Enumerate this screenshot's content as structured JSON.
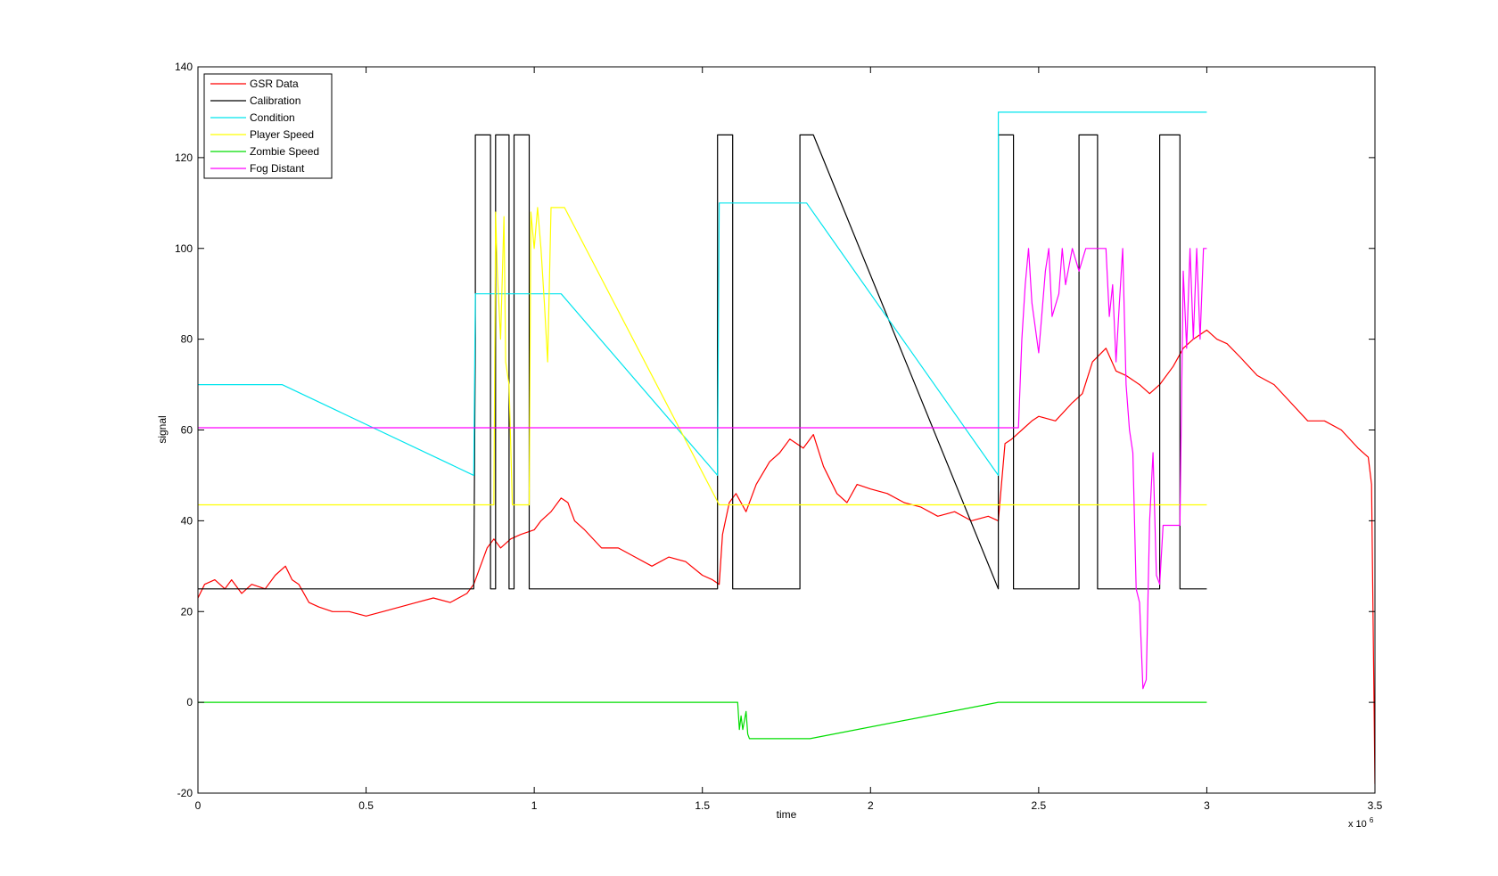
{
  "chart_data": {
    "type": "line",
    "xlabel": "time",
    "ylabel": "signal",
    "x_exponent_label": "x 10",
    "x_exponent_power": "6",
    "xlim": [
      0,
      3.5
    ],
    "ylim": [
      -20,
      140
    ],
    "x_ticks": [
      0,
      0.5,
      1,
      1.5,
      2,
      2.5,
      3,
      3.5
    ],
    "x_tick_labels": [
      "0",
      "0.5",
      "1",
      "1.5",
      "2",
      "2.5",
      "3",
      "3.5"
    ],
    "y_ticks": [
      -20,
      0,
      20,
      40,
      60,
      80,
      100,
      120,
      140
    ],
    "y_tick_labels": [
      "-20",
      "0",
      "20",
      "40",
      "60",
      "80",
      "100",
      "120",
      "140"
    ],
    "grid": false,
    "legend_position": "top-left",
    "series": [
      {
        "name": "GSR Data",
        "color": "#ff0000",
        "x": [
          0,
          0.02,
          0.05,
          0.08,
          0.1,
          0.13,
          0.16,
          0.2,
          0.23,
          0.26,
          0.28,
          0.3,
          0.33,
          0.36,
          0.4,
          0.45,
          0.5,
          0.55,
          0.6,
          0.65,
          0.7,
          0.75,
          0.8,
          0.82,
          0.84,
          0.86,
          0.88,
          0.9,
          0.93,
          0.96,
          1.0,
          1.02,
          1.05,
          1.08,
          1.1,
          1.12,
          1.15,
          1.2,
          1.25,
          1.3,
          1.35,
          1.4,
          1.45,
          1.5,
          1.53,
          1.55,
          1.56,
          1.58,
          1.6,
          1.63,
          1.66,
          1.7,
          1.73,
          1.76,
          1.8,
          1.83,
          1.86,
          1.9,
          1.93,
          1.96,
          2.0,
          2.05,
          2.1,
          2.15,
          2.2,
          2.25,
          2.3,
          2.35,
          2.38,
          2.4,
          2.42,
          2.45,
          2.48,
          2.5,
          2.55,
          2.6,
          2.63,
          2.66,
          2.7,
          2.73,
          2.76,
          2.8,
          2.83,
          2.86,
          2.9,
          2.93,
          2.96,
          3.0,
          3.03,
          3.06,
          3.1,
          3.15,
          3.2,
          3.25,
          3.3,
          3.35,
          3.4,
          3.45,
          3.48,
          3.49,
          3.5
        ],
        "y": [
          23,
          26,
          27,
          25,
          27,
          24,
          26,
          25,
          28,
          30,
          27,
          26,
          22,
          21,
          20,
          20,
          19,
          20,
          21,
          22,
          23,
          22,
          24,
          26,
          30,
          34,
          36,
          34,
          36,
          37,
          38,
          40,
          42,
          45,
          44,
          40,
          38,
          34,
          34,
          32,
          30,
          32,
          31,
          28,
          27,
          26,
          37,
          44,
          46,
          42,
          48,
          53,
          55,
          58,
          56,
          59,
          52,
          46,
          44,
          48,
          47,
          46,
          44,
          43,
          41,
          42,
          40,
          41,
          40,
          57,
          58,
          60,
          62,
          63,
          62,
          66,
          68,
          75,
          78,
          73,
          72,
          70,
          68,
          70,
          74,
          78,
          80,
          82,
          80,
          79,
          76,
          72,
          70,
          66,
          62,
          62,
          60,
          56,
          54,
          48,
          -18
        ]
      },
      {
        "name": "Calibration",
        "color": "#000000",
        "x": [
          0,
          0.82,
          0.825,
          0.825,
          0.87,
          0.87,
          0.885,
          0.885,
          0.925,
          0.925,
          0.94,
          0.94,
          0.985,
          0.985,
          1.545,
          1.545,
          1.59,
          1.59,
          1.605,
          1.605,
          1.79,
          1.79,
          1.83,
          2.38,
          2.38,
          2.425,
          2.425,
          2.44,
          2.44,
          2.62,
          2.62,
          2.675,
          2.675,
          2.86,
          2.86,
          2.92,
          2.92,
          3.0
        ],
        "y": [
          25,
          25,
          80,
          125,
          125,
          25,
          25,
          125,
          125,
          25,
          25,
          125,
          125,
          25,
          25,
          125,
          125,
          25,
          25,
          25,
          25,
          125,
          125,
          25,
          125,
          125,
          25,
          25,
          25,
          25,
          125,
          125,
          25,
          25,
          125,
          125,
          25,
          25
        ]
      },
      {
        "name": "Condition",
        "color": "#00e5ee",
        "x": [
          0,
          0.25,
          0.82,
          0.825,
          1.08,
          1.545,
          1.55,
          1.81,
          2.38,
          2.38,
          3.0
        ],
        "y": [
          70,
          70,
          50,
          90,
          90,
          50,
          110,
          110,
          50,
          130,
          130
        ]
      },
      {
        "name": "Player Speed",
        "color": "#ffff00",
        "x": [
          0,
          0.82,
          0.88,
          0.885,
          0.89,
          0.9,
          0.91,
          0.915,
          0.925,
          0.935,
          0.94,
          0.96,
          0.985,
          0.99,
          1.0,
          1.01,
          1.02,
          1.03,
          1.04,
          1.05,
          1.06,
          1.09,
          1.55,
          3.0
        ],
        "y": [
          43.5,
          43.5,
          43.5,
          108,
          95,
          80,
          107,
          75,
          70,
          43.5,
          43.5,
          43.5,
          43.5,
          108,
          100,
          109,
          100,
          88,
          75,
          109,
          109,
          109,
          43.5,
          43.5
        ]
      },
      {
        "name": "Zombie Speed",
        "color": "#00dd00",
        "x": [
          0,
          1.605,
          1.61,
          1.615,
          1.62,
          1.625,
          1.63,
          1.635,
          1.64,
          1.65,
          1.7,
          1.82,
          2.38,
          3.0
        ],
        "y": [
          0,
          0,
          -6,
          -3,
          -6,
          -4,
          -2,
          -7,
          -8,
          -8,
          -8,
          -8,
          0,
          0
        ]
      },
      {
        "name": "Fog Distant",
        "color": "#ff00ff",
        "x": [
          0,
          2.38,
          2.44,
          2.45,
          2.46,
          2.47,
          2.48,
          2.5,
          2.52,
          2.53,
          2.54,
          2.56,
          2.57,
          2.58,
          2.6,
          2.62,
          2.64,
          2.66,
          2.68,
          2.7,
          2.71,
          2.72,
          2.73,
          2.74,
          2.75,
          2.76,
          2.77,
          2.78,
          2.79,
          2.8,
          2.81,
          2.82,
          2.83,
          2.84,
          2.85,
          2.86,
          2.87,
          2.9,
          2.92,
          2.93,
          2.94,
          2.95,
          2.96,
          2.97,
          2.98,
          2.99,
          3.0
        ],
        "y": [
          60.5,
          60.5,
          60.5,
          80,
          92,
          100,
          88,
          77,
          95,
          100,
          85,
          90,
          100,
          92,
          100,
          95,
          100,
          100,
          100,
          100,
          85,
          92,
          75,
          88,
          100,
          70,
          60,
          55,
          25,
          22,
          3,
          5,
          40,
          55,
          28,
          26,
          39,
          39,
          39,
          95,
          78,
          100,
          80,
          100,
          80,
          100,
          100
        ]
      }
    ]
  }
}
